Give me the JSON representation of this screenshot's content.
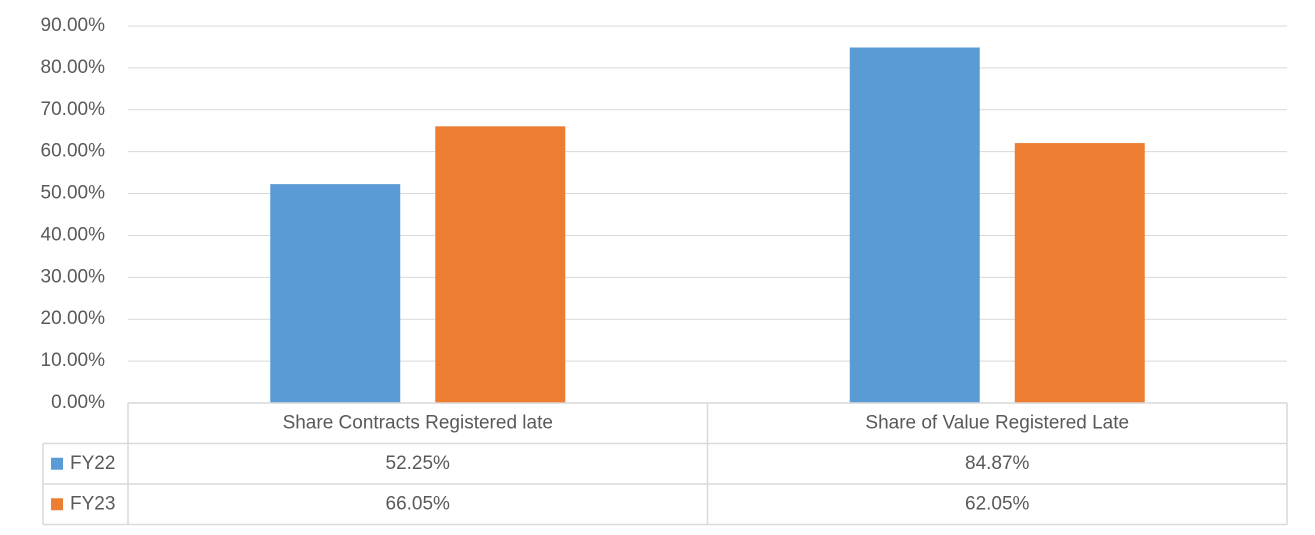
{
  "chart_data": {
    "type": "bar",
    "categories": [
      "Share Contracts Registered late",
      "Share of Value Registered Late"
    ],
    "series": [
      {
        "name": "FY22",
        "color": "#5b9bd5",
        "values": [
          52.25,
          84.87
        ],
        "value_labels": [
          "52.25%",
          "84.87%"
        ]
      },
      {
        "name": "FY23",
        "color": "#ed7d31",
        "values": [
          66.05,
          62.05
        ],
        "value_labels": [
          "66.05%",
          "62.05%"
        ]
      }
    ],
    "ylim": [
      0,
      90
    ],
    "yticks": [
      {
        "value": 0,
        "label": "0.00%"
      },
      {
        "value": 10,
        "label": "10.00%"
      },
      {
        "value": 20,
        "label": "20.00%"
      },
      {
        "value": 30,
        "label": "30.00%"
      },
      {
        "value": 40,
        "label": "40.00%"
      },
      {
        "value": 50,
        "label": "50.00%"
      },
      {
        "value": 60,
        "label": "60.00%"
      },
      {
        "value": 70,
        "label": "70.00%"
      },
      {
        "value": 80,
        "label": "80.00%"
      },
      {
        "value": 90,
        "label": "90.00%"
      }
    ],
    "grid": true
  }
}
